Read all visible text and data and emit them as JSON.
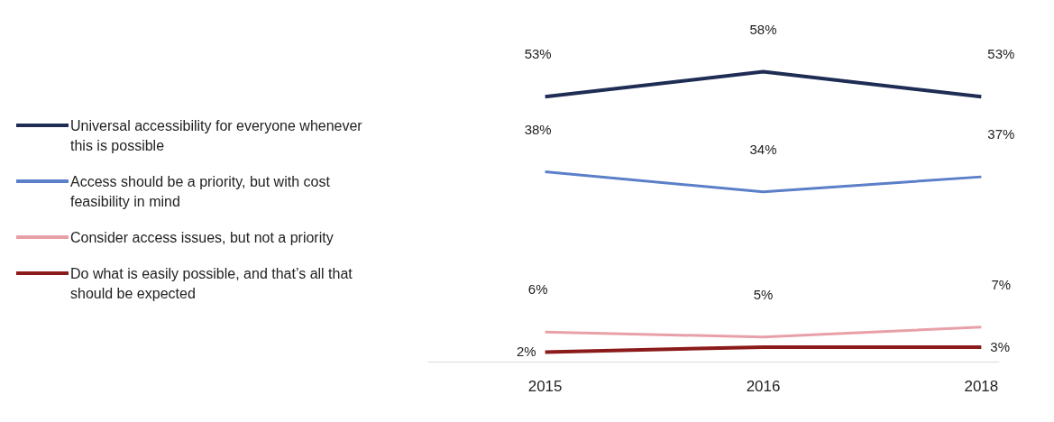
{
  "chart_data": {
    "type": "line",
    "categories": [
      "2015",
      "2016",
      "2018"
    ],
    "legend": "left",
    "marker": "none",
    "line_style": "solid",
    "tick_labels": "x",
    "series": [
      {
        "name": "Universal accessibility for everyone whenever this is possible",
        "color": "#1f2d55",
        "values": [
          53,
          58,
          53
        ],
        "value_labels": [
          "53%",
          "58%",
          "53%"
        ]
      },
      {
        "name": "Access should be a priority, but with cost feasibility in mind",
        "color": "#5b7fc8",
        "values": [
          38,
          34,
          37
        ],
        "value_labels": [
          "38%",
          "34%",
          "37%"
        ]
      },
      {
        "name": "Consider access issues, but not a priority",
        "color": "#e8a0a8",
        "values": [
          6,
          5,
          7
        ],
        "value_labels": [
          "6%",
          "5%",
          "7%"
        ]
      },
      {
        "name": "Do what is easily possible, and that’s all that should be expected",
        "color": "#8b1a1a",
        "values": [
          2,
          3,
          3
        ],
        "value_labels": [
          "2%",
          null,
          "3%"
        ]
      }
    ]
  }
}
